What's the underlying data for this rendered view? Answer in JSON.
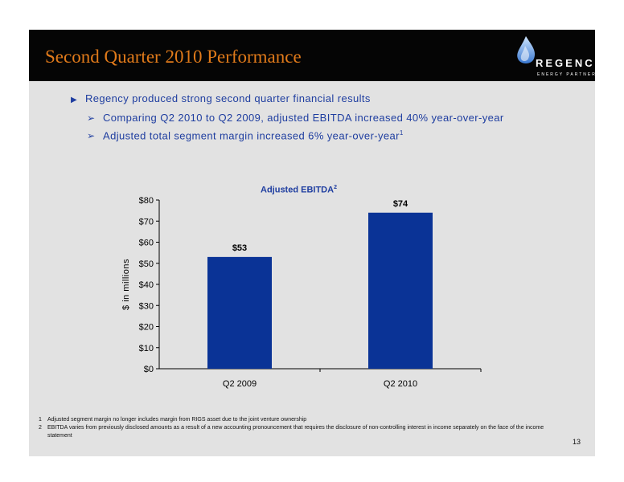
{
  "slide": {
    "title": "Second Quarter 2010 Performance",
    "logo": {
      "name": "REGENCY",
      "sub": "ENERGY PARTNERS"
    },
    "bullets": [
      {
        "text": "Regency produced strong second quarter financial results"
      },
      {
        "text": "Comparing Q2 2010 to Q2 2009, adjusted EBITDA increased 40% year-over-year"
      },
      {
        "text": "Adjusted total segment margin increased 6% year-over-year",
        "sup": "1"
      }
    ],
    "page_number": "13",
    "footnotes": [
      {
        "num": "1",
        "text": "Adjusted segment margin no longer includes margin from RIGS asset due to the joint venture ownership"
      },
      {
        "num": "2",
        "text": "EBITDA varies from previously disclosed amounts as a result of a new accounting pronouncement that requires the disclosure of non-controlling interest in income separately on the face of the income statement"
      }
    ]
  },
  "chart_data": {
    "type": "bar",
    "title": "Adjusted EBITDA",
    "title_sup": "2",
    "categories": [
      "Q2 2009",
      "Q2 2010"
    ],
    "values": [
      53,
      74
    ],
    "data_labels": [
      "$53",
      "$74"
    ],
    "ylabel": "$ in millions",
    "xlabel": "",
    "ylim": [
      0,
      80
    ],
    "y_ticks": [
      "$0",
      "$10",
      "$20",
      "$30",
      "$40",
      "$50",
      "$60",
      "$70",
      "$80"
    ],
    "bar_color": "#0a3396",
    "grid": false,
    "legend": "none"
  },
  "colors": {
    "title": "#e07a1a",
    "bullet_text": "#1f3ea0",
    "header_bg": "#050505",
    "slide_bg": "#e2e2e2"
  }
}
